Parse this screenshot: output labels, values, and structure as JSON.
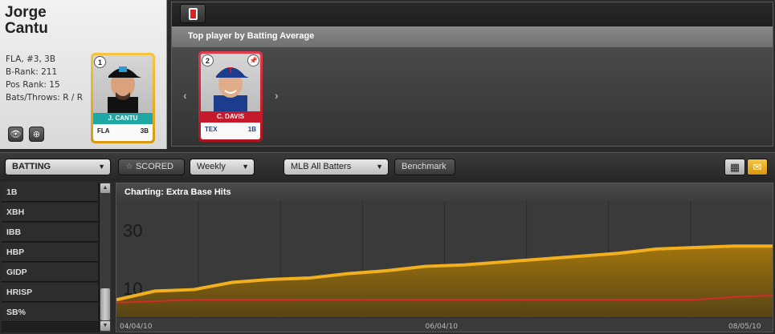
{
  "player": {
    "first_name": "Jorge",
    "last_name": "Cantu",
    "info_lines": [
      "FLA, #3, 3B",
      "B-Rank: 211",
      "Pos Rank: 15",
      "Bats/Throws: R / R"
    ]
  },
  "player_card": {
    "rank": "1",
    "name": "J. CANTU",
    "team": "FLA",
    "position": "3B"
  },
  "featured": {
    "title": "Top player by Batting Average",
    "card": {
      "rank": "2",
      "name": "C. DAVIS",
      "team": "TEX",
      "position": "1B"
    }
  },
  "toolbar": {
    "category": "BATTING",
    "scored_label": "SCORED",
    "period": "Weekly",
    "group": "MLB All Batters",
    "benchmark_label": "Benchmark"
  },
  "stats": [
    "1B",
    "XBH",
    "IBB",
    "HBP",
    "GIDP",
    "HRISP",
    "SB%"
  ],
  "chart_data": {
    "type": "area",
    "title": "Charting: Extra Base Hits",
    "x_labels": [
      "04/04/10",
      "06/04/10",
      "08/05/10"
    ],
    "y_ticks": [
      10,
      30
    ],
    "ylim": [
      0,
      40
    ],
    "series": [
      {
        "color": "#f2b01e",
        "values": [
          6,
          9,
          9.5,
          12,
          13,
          13.5,
          15,
          16,
          17.5,
          18,
          19,
          20,
          21,
          22,
          23.5,
          24,
          24.5,
          24.5
        ]
      },
      {
        "color": "#d42a2a",
        "values": [
          5,
          5.5,
          6,
          6,
          6,
          6,
          6,
          6,
          6,
          6,
          6,
          6,
          6,
          6,
          6,
          6,
          7,
          7.5
        ]
      }
    ]
  }
}
